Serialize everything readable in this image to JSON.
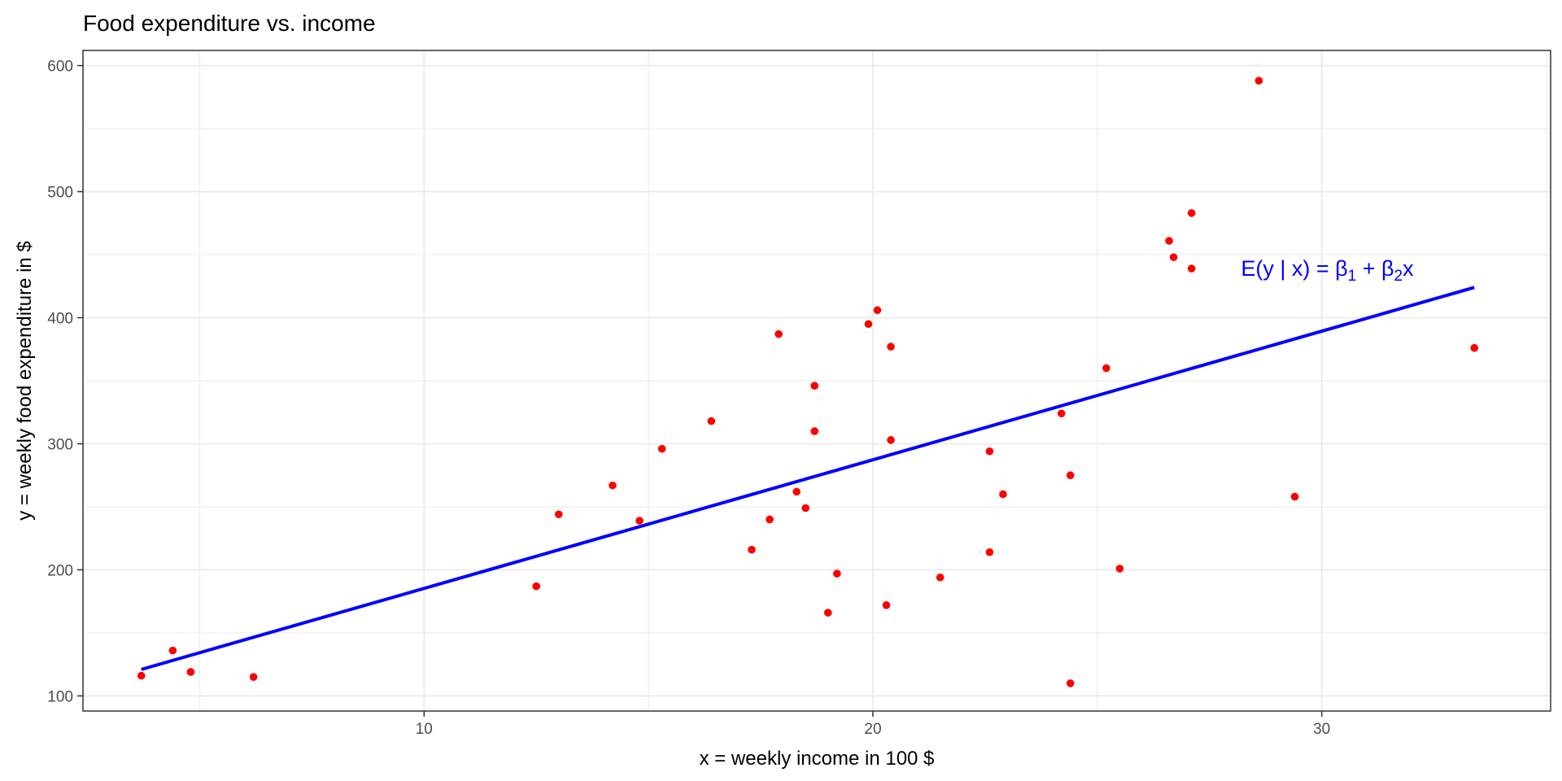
{
  "chart_data": {
    "type": "scatter",
    "title": "Food expenditure vs. income",
    "xlabel": "x = weekly income in 100 $",
    "ylabel": "y = weekly food expenditure in $",
    "xlim": [
      2.4,
      35.1
    ],
    "ylim": [
      88,
      612
    ],
    "xticks": [
      10,
      20,
      30
    ],
    "yticks": [
      100,
      200,
      300,
      400,
      500,
      600
    ],
    "grid": true,
    "points": [
      {
        "x": 3.7,
        "y": 116
      },
      {
        "x": 4.4,
        "y": 136
      },
      {
        "x": 4.8,
        "y": 119
      },
      {
        "x": 6.2,
        "y": 115
      },
      {
        "x": 12.5,
        "y": 187
      },
      {
        "x": 13.0,
        "y": 244
      },
      {
        "x": 14.2,
        "y": 267
      },
      {
        "x": 14.8,
        "y": 239
      },
      {
        "x": 15.3,
        "y": 296
      },
      {
        "x": 16.4,
        "y": 318
      },
      {
        "x": 17.3,
        "y": 216
      },
      {
        "x": 17.7,
        "y": 240
      },
      {
        "x": 17.9,
        "y": 387
      },
      {
        "x": 18.3,
        "y": 262
      },
      {
        "x": 18.5,
        "y": 249
      },
      {
        "x": 18.7,
        "y": 310
      },
      {
        "x": 18.7,
        "y": 346
      },
      {
        "x": 19.0,
        "y": 166
      },
      {
        "x": 19.2,
        "y": 197
      },
      {
        "x": 19.9,
        "y": 395
      },
      {
        "x": 20.1,
        "y": 406
      },
      {
        "x": 20.3,
        "y": 172
      },
      {
        "x": 20.4,
        "y": 303
      },
      {
        "x": 20.4,
        "y": 377
      },
      {
        "x": 21.5,
        "y": 194
      },
      {
        "x": 22.6,
        "y": 214
      },
      {
        "x": 22.6,
        "y": 294
      },
      {
        "x": 22.9,
        "y": 260
      },
      {
        "x": 24.2,
        "y": 324
      },
      {
        "x": 24.4,
        "y": 275
      },
      {
        "x": 24.4,
        "y": 110
      },
      {
        "x": 25.2,
        "y": 360
      },
      {
        "x": 25.5,
        "y": 201
      },
      {
        "x": 26.6,
        "y": 461
      },
      {
        "x": 26.7,
        "y": 448
      },
      {
        "x": 27.1,
        "y": 483
      },
      {
        "x": 27.1,
        "y": 439
      },
      {
        "x": 28.6,
        "y": 588
      },
      {
        "x": 29.4,
        "y": 258
      },
      {
        "x": 33.4,
        "y": 376
      }
    ],
    "regression_line": {
      "x": [
        3.7,
        33.4
      ],
      "y": [
        121,
        424
      ]
    },
    "annotation": {
      "prefix": "E(y | x) = ",
      "beta": "β",
      "sub1": "1",
      "plus": " + ",
      "sub2": "2",
      "suffix": "x",
      "x": 28.2,
      "y": 439
    },
    "colors": {
      "points": "#ff0000",
      "line": "#0000ff",
      "annotation": "#0000ff",
      "grid": "#ebebeb",
      "panel_border": "#333333"
    }
  }
}
